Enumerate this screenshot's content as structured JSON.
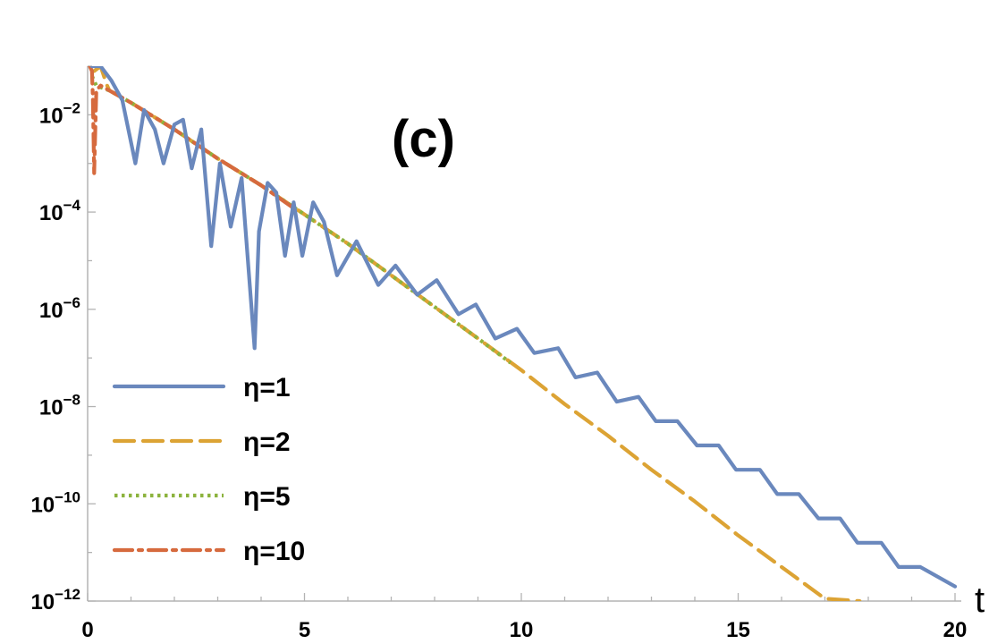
{
  "chart_data": {
    "type": "line",
    "title": "",
    "panel_label": "(c)",
    "xlabel": "t",
    "ylabel": "",
    "xlim": [
      0,
      20
    ],
    "ylim_log10": [
      -12,
      -1
    ],
    "y_scale": "log",
    "grid": false,
    "x_ticks": [
      "0",
      "5",
      "10",
      "15",
      "20"
    ],
    "y_ticks": [
      {
        "base": "10",
        "exp": "−2",
        "log10": -2
      },
      {
        "base": "10",
        "exp": "−4",
        "log10": -4
      },
      {
        "base": "10",
        "exp": "−6",
        "log10": -6
      },
      {
        "base": "10",
        "exp": "−8",
        "log10": -8
      },
      {
        "base": "10",
        "exp": "−10",
        "log10": -10
      },
      {
        "base": "10",
        "exp": "−12",
        "log10": -12
      }
    ],
    "legend_position": "bottom-left",
    "series": [
      {
        "name": "η=1",
        "eta": "1",
        "color": "#6a88bd",
        "dash": "solid",
        "x": [
          0.1,
          0.3,
          0.55,
          0.8,
          1.1,
          1.3,
          1.55,
          1.75,
          2.0,
          2.2,
          2.4,
          2.62,
          2.85,
          3.05,
          3.3,
          3.55,
          3.85,
          3.95,
          4.15,
          4.35,
          4.55,
          4.75,
          4.95,
          5.2,
          5.45,
          5.75,
          6.2,
          6.7,
          7.1,
          7.6,
          8.05,
          8.55,
          8.95,
          9.4,
          9.9,
          10.3,
          10.85,
          11.25,
          11.75,
          12.2,
          12.7,
          13.1,
          13.6,
          14.05,
          14.55,
          14.95,
          15.5,
          15.9,
          16.4,
          16.85,
          17.35,
          17.75,
          18.3,
          18.7,
          19.2,
          20.0
        ],
        "log10": [
          -1.0,
          -1.0,
          -1.3,
          -1.7,
          -3.0,
          -1.9,
          -2.3,
          -3.0,
          -2.2,
          -2.1,
          -3.1,
          -2.3,
          -4.7,
          -3.0,
          -4.3,
          -3.3,
          -6.8,
          -4.4,
          -3.4,
          -3.6,
          -4.9,
          -3.8,
          -4.9,
          -3.8,
          -4.2,
          -5.3,
          -4.6,
          -5.5,
          -5.1,
          -5.7,
          -5.4,
          -6.1,
          -5.9,
          -6.6,
          -6.4,
          -6.9,
          -6.8,
          -7.4,
          -7.3,
          -7.9,
          -7.8,
          -8.3,
          -8.3,
          -8.8,
          -8.8,
          -9.3,
          -9.3,
          -9.8,
          -9.8,
          -10.3,
          -10.3,
          -10.8,
          -10.8,
          -11.3,
          -11.3,
          -11.7
        ]
      },
      {
        "name": "η=2",
        "eta": "2",
        "color": "#dca334",
        "dash": "dashed",
        "x": [
          0.15,
          0.3,
          0.45,
          0.5,
          1.0,
          2.0,
          3.0,
          4.0,
          5.0,
          6.0,
          7.0,
          8.0,
          9.0,
          10.0,
          11.0,
          12.0,
          13.0,
          14.0,
          15.0,
          16.0,
          17.0,
          17.8
        ],
        "log10": [
          -1.1,
          -1.0,
          -1.4,
          -1.5,
          -1.75,
          -2.3,
          -2.9,
          -3.45,
          -4.05,
          -4.65,
          -5.3,
          -5.95,
          -6.6,
          -7.25,
          -7.95,
          -8.6,
          -9.3,
          -9.95,
          -10.65,
          -11.3,
          -11.95,
          -12.0
        ]
      },
      {
        "name": "η=5",
        "eta": "5",
        "color": "#8cb33e",
        "dash": "dotted",
        "x": [
          0.1,
          0.2,
          0.5,
          1.0,
          2.0,
          3.0,
          4.0,
          5.0,
          6.0,
          7.0,
          8.0,
          9.0,
          9.75
        ],
        "log10": [
          -1.2,
          -1.4,
          -1.5,
          -1.75,
          -2.3,
          -2.9,
          -3.45,
          -4.05,
          -4.65,
          -5.3,
          -5.95,
          -6.6,
          -7.1
        ]
      },
      {
        "name": "η=10",
        "eta": "10",
        "color": "#d66a3e",
        "dash": "dashdot",
        "x": [
          0.05,
          0.1,
          0.12,
          0.15,
          0.2,
          0.3,
          0.5,
          1.0,
          2.0,
          3.0,
          4.0,
          4.8
        ],
        "log10": [
          -1.0,
          -1.1,
          -1.6,
          -3.2,
          -1.5,
          -1.4,
          -1.5,
          -1.75,
          -2.3,
          -2.9,
          -3.45,
          -3.95
        ]
      }
    ]
  }
}
